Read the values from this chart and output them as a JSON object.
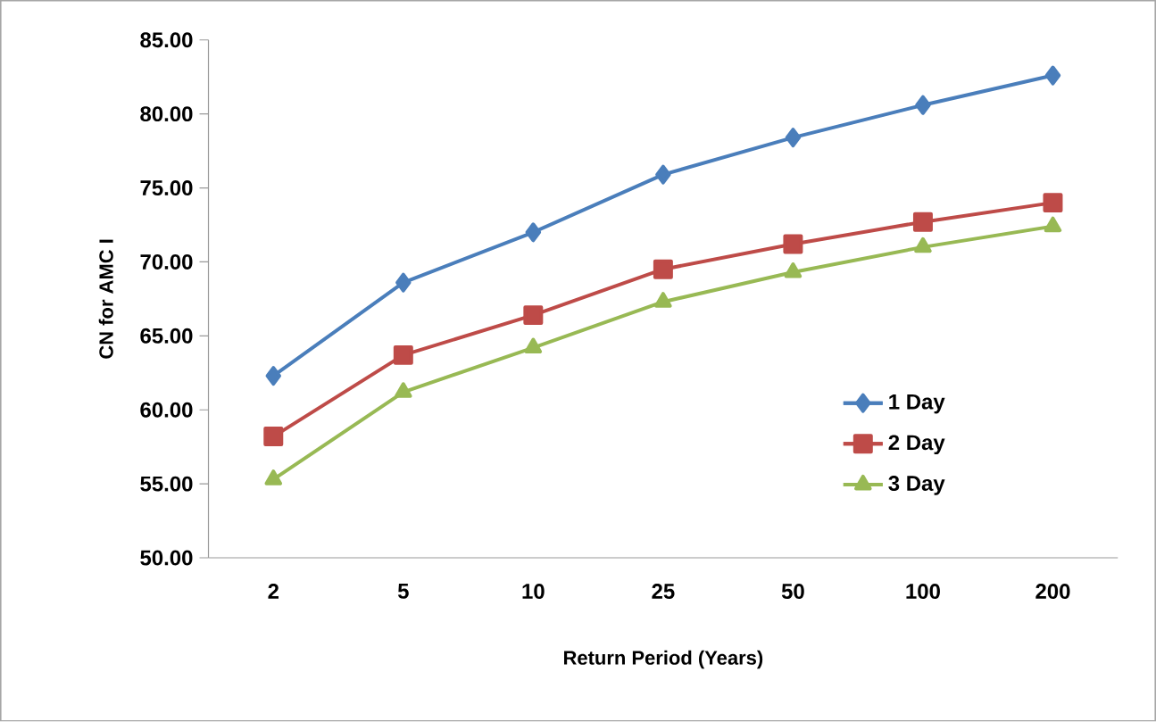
{
  "chart_data": {
    "type": "line",
    "xlabel": "Return Period (Years)",
    "ylabel": "CN for AMC I",
    "categories": [
      "2",
      "5",
      "10",
      "25",
      "50",
      "100",
      "200"
    ],
    "series": [
      {
        "name": "1 Day",
        "color": "#4a7ebb",
        "marker": "diamond",
        "values": [
          62.3,
          68.6,
          72.0,
          75.9,
          78.4,
          80.6,
          82.6
        ]
      },
      {
        "name": "2 Day",
        "color": "#be4b48",
        "marker": "square",
        "values": [
          58.2,
          63.7,
          66.4,
          69.5,
          71.2,
          72.7,
          74.0
        ]
      },
      {
        "name": "3 Day",
        "color": "#98b954",
        "marker": "triangle",
        "values": [
          55.3,
          61.2,
          64.2,
          67.3,
          69.3,
          71.0,
          72.4
        ]
      }
    ],
    "ylim": [
      50,
      85
    ],
    "yticks": [
      {
        "value": 50,
        "label": "50.00"
      },
      {
        "value": 55,
        "label": "55.00"
      },
      {
        "value": 60,
        "label": "60.00"
      },
      {
        "value": 65,
        "label": "65.00"
      },
      {
        "value": 70,
        "label": "70.00"
      },
      {
        "value": 75,
        "label": "75.00"
      },
      {
        "value": 80,
        "label": "80.00"
      },
      {
        "value": 85,
        "label": "85.00"
      }
    ],
    "legend": "right",
    "grid": false
  }
}
